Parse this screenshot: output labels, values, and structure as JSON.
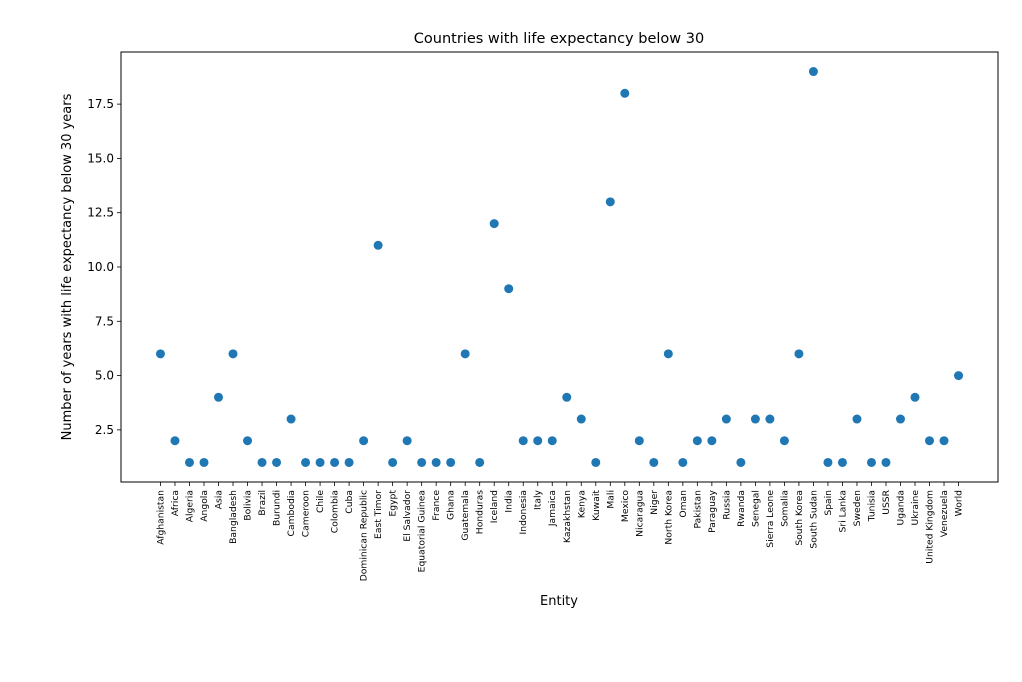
{
  "chart_data": {
    "type": "scatter",
    "title": "Countries with life expectancy below 30",
    "xlabel": "Entity",
    "ylabel": "Number of years with life expectancy below 30 years",
    "ylim": [
      0.1,
      19.9
    ],
    "yticks": [
      "2.5",
      "5.0",
      "7.5",
      "10.0",
      "12.5",
      "15.0",
      "17.5"
    ],
    "grid": false,
    "color": "#1f77b4",
    "categories": [
      "Afghanistan",
      "Africa",
      "Algeria",
      "Angola",
      "Asia",
      "Bangladesh",
      "Bolivia",
      "Brazil",
      "Burundi",
      "Cambodia",
      "Cameroon",
      "Chile",
      "Colombia",
      "Cuba",
      "Dominican Republic",
      "East Timor",
      "Egypt",
      "El Salvador",
      "Equatorial Guinea",
      "France",
      "Ghana",
      "Guatemala",
      "Honduras",
      "Iceland",
      "India",
      "Indonesia",
      "Italy",
      "Jamaica",
      "Kazakhstan",
      "Kenya",
      "Kuwait",
      "Mali",
      "Mexico",
      "Nicaragua",
      "Niger",
      "North Korea",
      "Oman",
      "Pakistan",
      "Paraguay",
      "Russia",
      "Rwanda",
      "Senegal",
      "Sierra Leone",
      "Somalia",
      "South Korea",
      "South Sudan",
      "Spain",
      "Sri Lanka",
      "Sweden",
      "Tunisia",
      "USSR",
      "Uganda",
      "Ukraine",
      "United Kingdom",
      "Venezuela",
      "World"
    ],
    "values": [
      6,
      2,
      1,
      1,
      4,
      6,
      2,
      1,
      1,
      3,
      1,
      1,
      1,
      1,
      2,
      11,
      1,
      2,
      1,
      1,
      1,
      6,
      1,
      12,
      9,
      2,
      2,
      2,
      4,
      3,
      1,
      13,
      18,
      2,
      1,
      6,
      1,
      2,
      2,
      3,
      1,
      3,
      3,
      2,
      6,
      19,
      1,
      1,
      3,
      1,
      1,
      3,
      4,
      2,
      2,
      5
    ]
  }
}
